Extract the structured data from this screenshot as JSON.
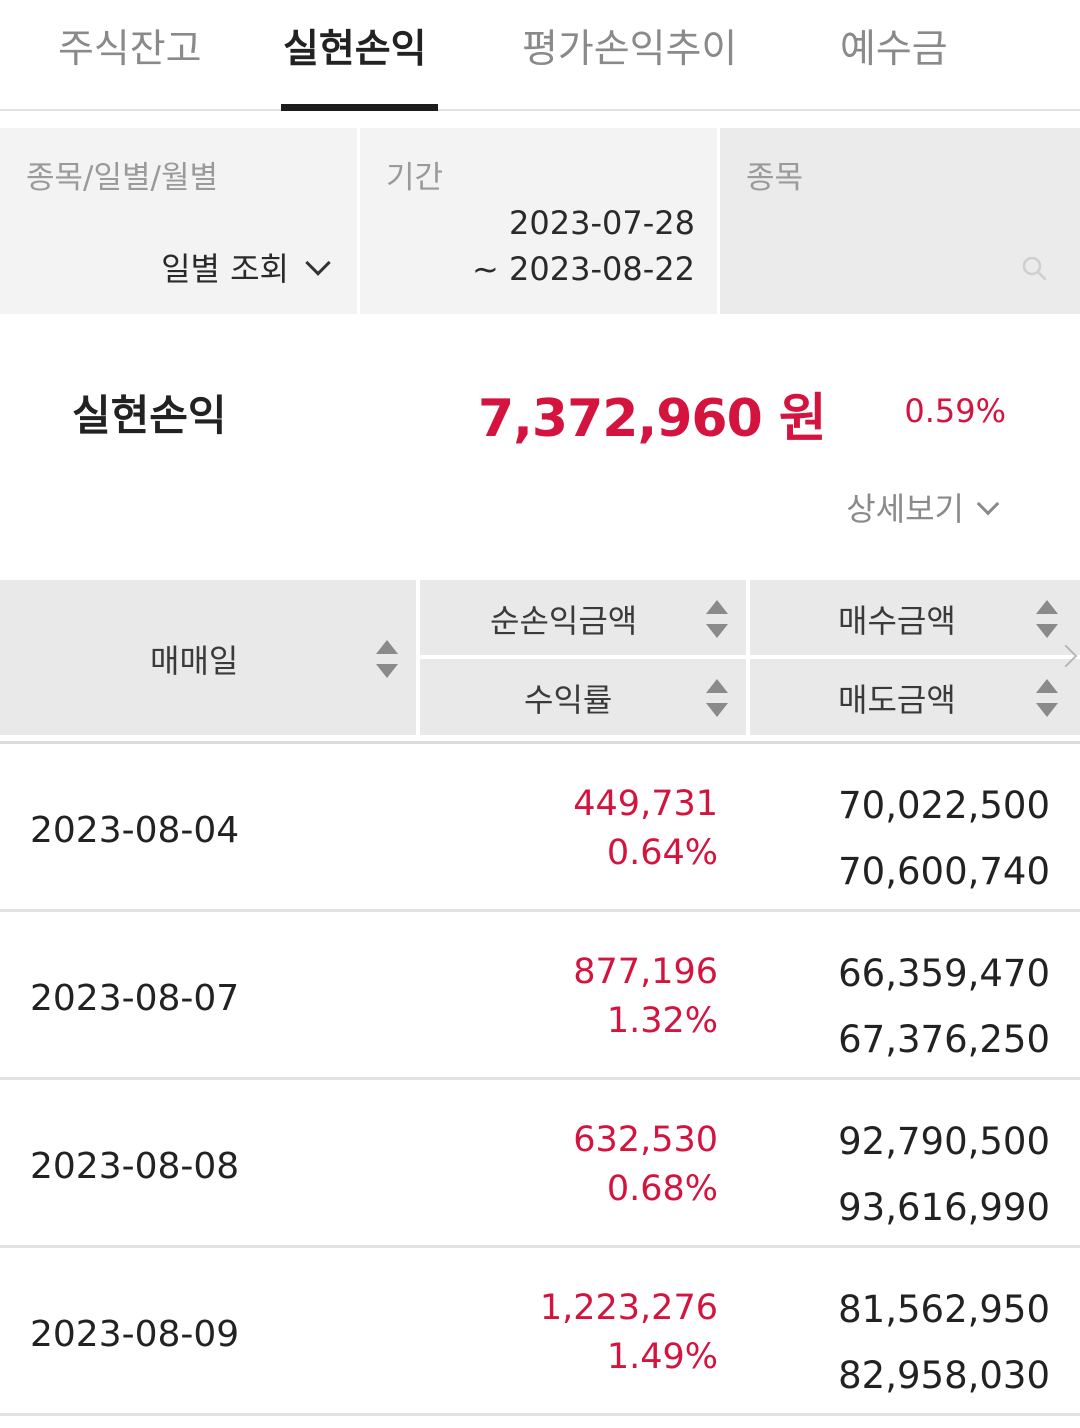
{
  "tabs": [
    {
      "label": "주식잔고"
    },
    {
      "label": "실현손익",
      "active": true
    },
    {
      "label": "평가손익추이"
    },
    {
      "label": "예수금"
    }
  ],
  "filters": {
    "type_label": "종목/일별/월별",
    "type_value": "일별 조회",
    "period_label": "기간",
    "period_start": "2023-07-28",
    "period_end": "~ 2023-08-22",
    "stock_label": "종목",
    "search_icon": "search-icon"
  },
  "summary": {
    "label": "실현손익",
    "amount": "7,372,960 원",
    "rate": "0.59%",
    "detail_label": "상세보기"
  },
  "table": {
    "headers": {
      "date": "매매일",
      "net_pl": "순손익금액",
      "rate": "수익률",
      "buy": "매수금액",
      "sell": "매도금액"
    },
    "rows": [
      {
        "date": "2023-08-04",
        "net_pl": "449,731",
        "rate": "0.64%",
        "buy": "70,022,500",
        "sell": "70,600,740"
      },
      {
        "date": "2023-08-07",
        "net_pl": "877,196",
        "rate": "1.32%",
        "buy": "66,359,470",
        "sell": "67,376,250"
      },
      {
        "date": "2023-08-08",
        "net_pl": "632,530",
        "rate": "0.68%",
        "buy": "92,790,500",
        "sell": "93,616,990"
      },
      {
        "date": "2023-08-09",
        "net_pl": "1,223,276",
        "rate": "1.49%",
        "buy": "81,562,950",
        "sell": "82,958,030"
      }
    ]
  },
  "colors": {
    "accent_red": "#d4143f",
    "header_bg": "#e9e9e9",
    "filter_bg": "#f3f3f3"
  }
}
